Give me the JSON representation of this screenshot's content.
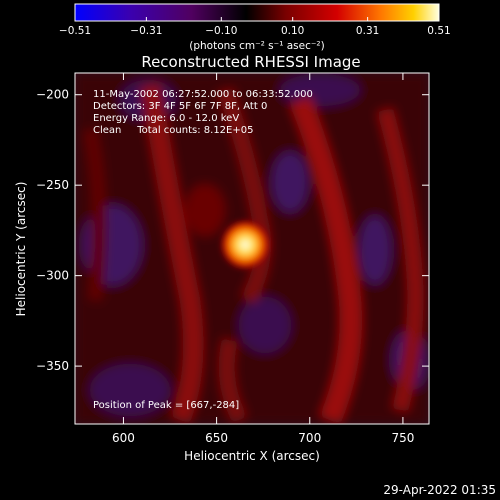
{
  "chart_data": {
    "type": "heatmap",
    "title": "Reconstructed RHESSI Image",
    "xlabel": "Heliocentric X (arcsec)",
    "ylabel": "Heliocentric Y (arcsec)",
    "xlim": [
      574,
      764
    ],
    "ylim": [
      -382,
      -188
    ],
    "x_ticks": [
      600,
      650,
      700,
      750
    ],
    "y_ticks": [
      -350,
      -300,
      -250,
      -200
    ],
    "x_tick_labels": [
      "600",
      "650",
      "700",
      "750"
    ],
    "y_tick_labels": [
      "−350",
      "−300",
      "−250",
      "−200"
    ],
    "colorbar": {
      "range": [
        -0.51,
        0.51
      ],
      "ticks": [
        -0.51,
        -0.31,
        -0.1,
        0.1,
        0.31,
        0.51
      ],
      "tick_labels": [
        "−0.51",
        "−0.31",
        "−0.10",
        "0.10",
        "0.31",
        "0.51"
      ],
      "unit_label": "(photons cm⁻² s⁻¹ asec⁻²)",
      "colors": [
        "#0000ff",
        "#3a00b0",
        "#500060",
        "#000000",
        "#7a0000",
        "#d40000",
        "#ff7700",
        "#ffd000",
        "#ffffe0"
      ]
    },
    "annotations": [
      "11-May-2002 06:27:52.000 to 06:33:52.000",
      "Detectors: 3F 4F 5F 6F 7F 8F, Att 0",
      "Energy Range: 6.0 - 12.0 keV",
      "Clean     Total counts: 8.12E+05"
    ],
    "peak_label": "Position of Peak = [667,-284]",
    "peak": {
      "x": 667,
      "y": -284
    }
  },
  "footer": {
    "timestamp": "29-Apr-2022 01:35"
  }
}
